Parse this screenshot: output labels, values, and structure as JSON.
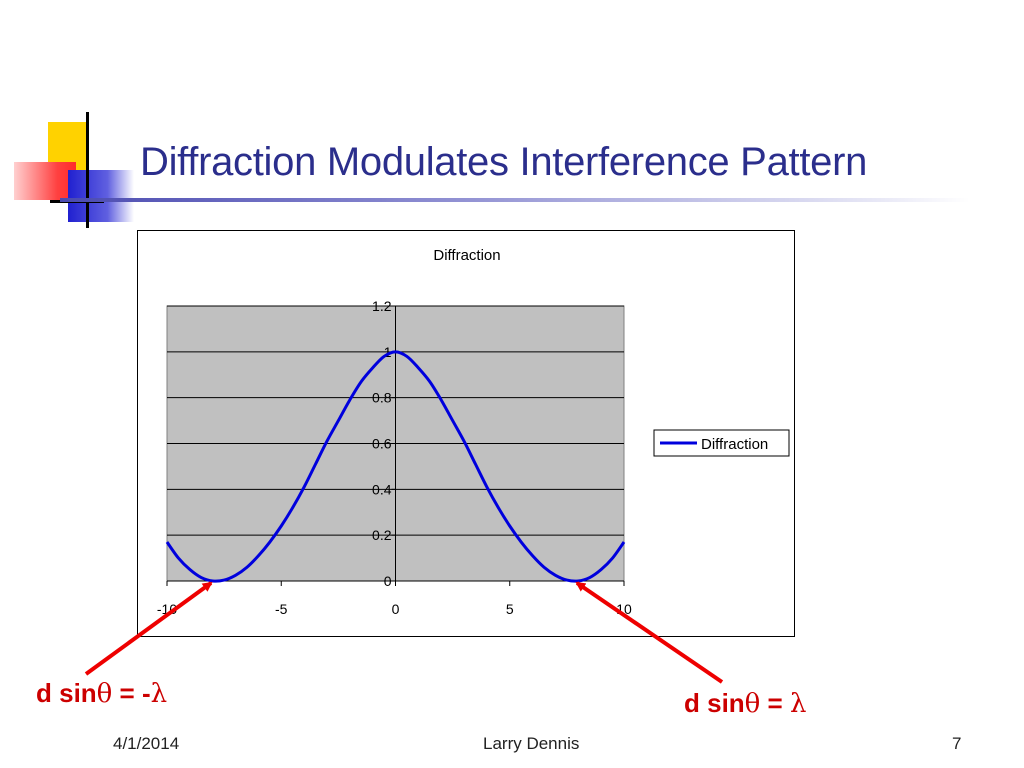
{
  "slide": {
    "title": "Diffraction Modulates Interference Pattern",
    "date": "4/1/2014",
    "author": "Larry Dennis",
    "page_number": "7"
  },
  "annotations": {
    "left_label_prefix": "d sin",
    "left_label_theta": "θ",
    "left_label_eq": " = -",
    "left_label_lambda": "λ",
    "right_label_prefix": "d sin",
    "right_label_theta": "θ",
    "right_label_eq": " = ",
    "right_label_lambda": "λ"
  },
  "colors": {
    "title": "#2b2e8c",
    "annotation": "#cc0000",
    "series_line": "#0000dd",
    "plot_background": "#c0c0c0"
  },
  "chart_data": {
    "type": "line",
    "title": "Diffraction",
    "xlabel": "",
    "ylabel": "",
    "xlim": [
      -10,
      10
    ],
    "ylim": [
      0,
      1.2
    ],
    "x_ticks": [
      "-10",
      "-5",
      "0",
      "5",
      "10"
    ],
    "y_ticks": [
      "0",
      "0.2",
      "0.4",
      "0.6",
      "0.8",
      "1",
      "1.2"
    ],
    "grid": true,
    "legend_position": "right",
    "series": [
      {
        "name": "Diffraction",
        "x": [
          -10,
          -9.5,
          -9,
          -8.5,
          -8,
          -7.5,
          -7,
          -6.5,
          -6,
          -5.5,
          -5,
          -4.5,
          -4,
          -3.5,
          -3,
          -2.5,
          -2,
          -1.5,
          -1,
          -0.5,
          0,
          0.5,
          1,
          1.5,
          2,
          2.5,
          3,
          3.5,
          4,
          4.5,
          5,
          5.5,
          6,
          6.5,
          7,
          7.5,
          8,
          8.5,
          9,
          9.5,
          10
        ],
        "y": [
          0.17,
          0.1,
          0.05,
          0.015,
          0.0,
          0.004,
          0.025,
          0.06,
          0.11,
          0.17,
          0.24,
          0.32,
          0.41,
          0.51,
          0.61,
          0.7,
          0.79,
          0.87,
          0.93,
          0.98,
          1.0,
          0.98,
          0.93,
          0.87,
          0.79,
          0.7,
          0.61,
          0.51,
          0.41,
          0.32,
          0.24,
          0.17,
          0.11,
          0.06,
          0.025,
          0.004,
          0.0,
          0.015,
          0.05,
          0.1,
          0.17
        ]
      }
    ]
  }
}
